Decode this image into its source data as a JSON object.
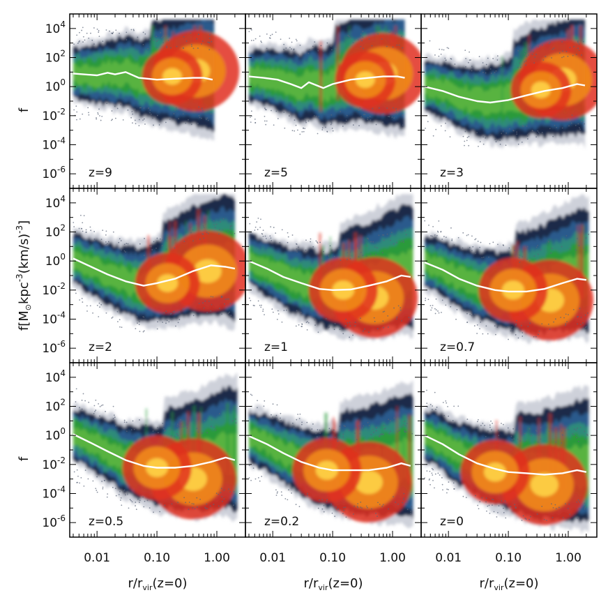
{
  "chart_data": {
    "type": "heatmap",
    "layout": "3x3 grid of density panels with shared axes",
    "xscale": "log",
    "yscale": "log",
    "xlim": [
      0.0035,
      3.0
    ],
    "ylim": [
      1e-07,
      100000.0
    ],
    "x_ticks": [
      {
        "value": 0.01,
        "label": "0.01"
      },
      {
        "value": 0.1,
        "label": "0.10"
      },
      {
        "value": 1.0,
        "label": "1.00"
      }
    ],
    "y_ticks": [
      {
        "value": 10000.0,
        "base": "10",
        "exp": "4"
      },
      {
        "value": 100.0,
        "base": "10",
        "exp": "2"
      },
      {
        "value": 1.0,
        "base": "10",
        "exp": "0"
      },
      {
        "value": 0.01,
        "base": "10",
        "exp": "-2"
      },
      {
        "value": 0.0001,
        "base": "10",
        "exp": "-4"
      },
      {
        "value": 1e-06,
        "base": "10",
        "exp": "-6"
      }
    ],
    "xlabel": {
      "main": "r/r",
      "sub": "vir",
      "tail": "(z=0)"
    },
    "ylabel_short": "f",
    "ylabel_middle": {
      "pre": "f[M",
      "sun": "⊙",
      "post": "kpc",
      "exp1": "-3",
      "mid": "(km/s)",
      "exp2": "-3",
      "close": "]"
    },
    "panels": [
      {
        "label": "z=9",
        "extent": [
          0.004,
          0.9
        ],
        "median": {
          "x": [
            0.004,
            0.006,
            0.01,
            0.015,
            0.02,
            0.03,
            0.05,
            0.1,
            0.2,
            0.4,
            0.6,
            0.85
          ],
          "y": [
            8,
            7,
            6,
            9,
            7,
            10,
            4,
            3,
            3.5,
            4,
            4,
            3
          ]
        },
        "hotspots": [
          {
            "x": 0.45,
            "y": 12,
            "strength": 1.0
          },
          {
            "x": 0.18,
            "y": 5,
            "strength": 0.7
          }
        ]
      },
      {
        "label": "z=5",
        "extent": [
          0.004,
          1.6
        ],
        "median": {
          "x": [
            0.004,
            0.007,
            0.012,
            0.02,
            0.03,
            0.04,
            0.07,
            0.1,
            0.2,
            0.4,
            0.7,
            1.2,
            1.6
          ],
          "y": [
            5,
            4,
            3,
            1.5,
            0.8,
            2,
            0.8,
            1.5,
            3,
            4,
            5,
            5,
            4
          ]
        },
        "hotspots": [
          {
            "x": 0.7,
            "y": 8,
            "strength": 1.0
          },
          {
            "x": 0.35,
            "y": 3,
            "strength": 0.7
          }
        ]
      },
      {
        "label": "z=3",
        "extent": [
          0.004,
          1.9
        ],
        "median": {
          "x": [
            0.004,
            0.008,
            0.015,
            0.03,
            0.05,
            0.1,
            0.2,
            0.4,
            0.8,
            1.4,
            1.9
          ],
          "y": [
            1.0,
            0.5,
            0.2,
            0.1,
            0.08,
            0.12,
            0.25,
            0.5,
            0.8,
            1.5,
            1.2
          ]
        },
        "hotspots": [
          {
            "x": 0.8,
            "y": 3,
            "strength": 1.0
          },
          {
            "x": 0.35,
            "y": 0.6,
            "strength": 0.7
          }
        ]
      },
      {
        "label": "z=2",
        "extent": [
          0.004,
          2.0
        ],
        "median": {
          "x": [
            0.004,
            0.008,
            0.015,
            0.03,
            0.06,
            0.1,
            0.2,
            0.4,
            0.8,
            1.4,
            2.0
          ],
          "y": [
            1.5,
            0.4,
            0.12,
            0.04,
            0.02,
            0.03,
            0.06,
            0.2,
            0.5,
            0.4,
            0.3
          ]
        },
        "hotspots": [
          {
            "x": 0.7,
            "y": 0.2,
            "strength": 1.0
          },
          {
            "x": 0.15,
            "y": 0.03,
            "strength": 0.75
          }
        ]
      },
      {
        "label": "z=1",
        "extent": [
          0.004,
          2.2
        ],
        "median": {
          "x": [
            0.004,
            0.008,
            0.015,
            0.03,
            0.06,
            0.1,
            0.2,
            0.4,
            0.8,
            1.4,
            2.0
          ],
          "y": [
            1.0,
            0.3,
            0.08,
            0.03,
            0.012,
            0.01,
            0.011,
            0.02,
            0.04,
            0.1,
            0.08
          ]
        },
        "hotspots": [
          {
            "x": 0.5,
            "y": 0.003,
            "strength": 1.0
          },
          {
            "x": 0.15,
            "y": 0.01,
            "strength": 0.8
          }
        ]
      },
      {
        "label": "z=0.7",
        "extent": [
          0.004,
          2.2
        ],
        "median": {
          "x": [
            0.004,
            0.008,
            0.015,
            0.03,
            0.06,
            0.1,
            0.2,
            0.4,
            0.8,
            1.4,
            2.0
          ],
          "y": [
            0.8,
            0.25,
            0.06,
            0.02,
            0.01,
            0.008,
            0.008,
            0.012,
            0.03,
            0.06,
            0.05
          ]
        },
        "hotspots": [
          {
            "x": 0.5,
            "y": 0.002,
            "strength": 1.0
          },
          {
            "x": 0.12,
            "y": 0.01,
            "strength": 0.8
          }
        ]
      },
      {
        "label": "z=0.5",
        "extent": [
          0.004,
          2.2
        ],
        "median": {
          "x": [
            0.004,
            0.008,
            0.015,
            0.03,
            0.06,
            0.1,
            0.2,
            0.4,
            0.8,
            1.4,
            2.0
          ],
          "y": [
            1.2,
            0.3,
            0.08,
            0.02,
            0.008,
            0.006,
            0.006,
            0.008,
            0.015,
            0.03,
            0.02
          ]
        },
        "hotspots": [
          {
            "x": 0.4,
            "y": 0.001,
            "strength": 1.0
          },
          {
            "x": 0.1,
            "y": 0.006,
            "strength": 0.8
          }
        ]
      },
      {
        "label": "z=0.2",
        "extent": [
          0.004,
          2.2
        ],
        "median": {
          "x": [
            0.004,
            0.008,
            0.015,
            0.03,
            0.06,
            0.1,
            0.2,
            0.4,
            0.8,
            1.4,
            2.0
          ],
          "y": [
            0.9,
            0.25,
            0.06,
            0.015,
            0.006,
            0.004,
            0.004,
            0.004,
            0.006,
            0.012,
            0.008
          ]
        },
        "hotspots": [
          {
            "x": 0.4,
            "y": 0.0006,
            "strength": 1.0
          },
          {
            "x": 0.08,
            "y": 0.004,
            "strength": 0.8
          }
        ]
      },
      {
        "label": "z=0",
        "extent": [
          0.004,
          2.2
        ],
        "median": {
          "x": [
            0.004,
            0.008,
            0.015,
            0.03,
            0.06,
            0.1,
            0.2,
            0.4,
            0.8,
            1.4,
            2.0
          ],
          "y": [
            1.0,
            0.25,
            0.05,
            0.012,
            0.005,
            0.003,
            0.0025,
            0.002,
            0.0025,
            0.004,
            0.003
          ]
        },
        "hotspots": [
          {
            "x": 0.4,
            "y": 0.0004,
            "strength": 1.0
          },
          {
            "x": 0.06,
            "y": 0.003,
            "strength": 0.8
          }
        ]
      }
    ],
    "colors": {
      "outer": "#1a2a4a",
      "blue": "#2b5a8c",
      "teal": "#2e8b7a",
      "green": "#2a9a3a",
      "light_green": "#7ec845",
      "red": "#e0301e",
      "orange": "#f08a1a",
      "core": "#ffd84a",
      "median_line": "#ffffff",
      "axis": "#000000"
    }
  }
}
